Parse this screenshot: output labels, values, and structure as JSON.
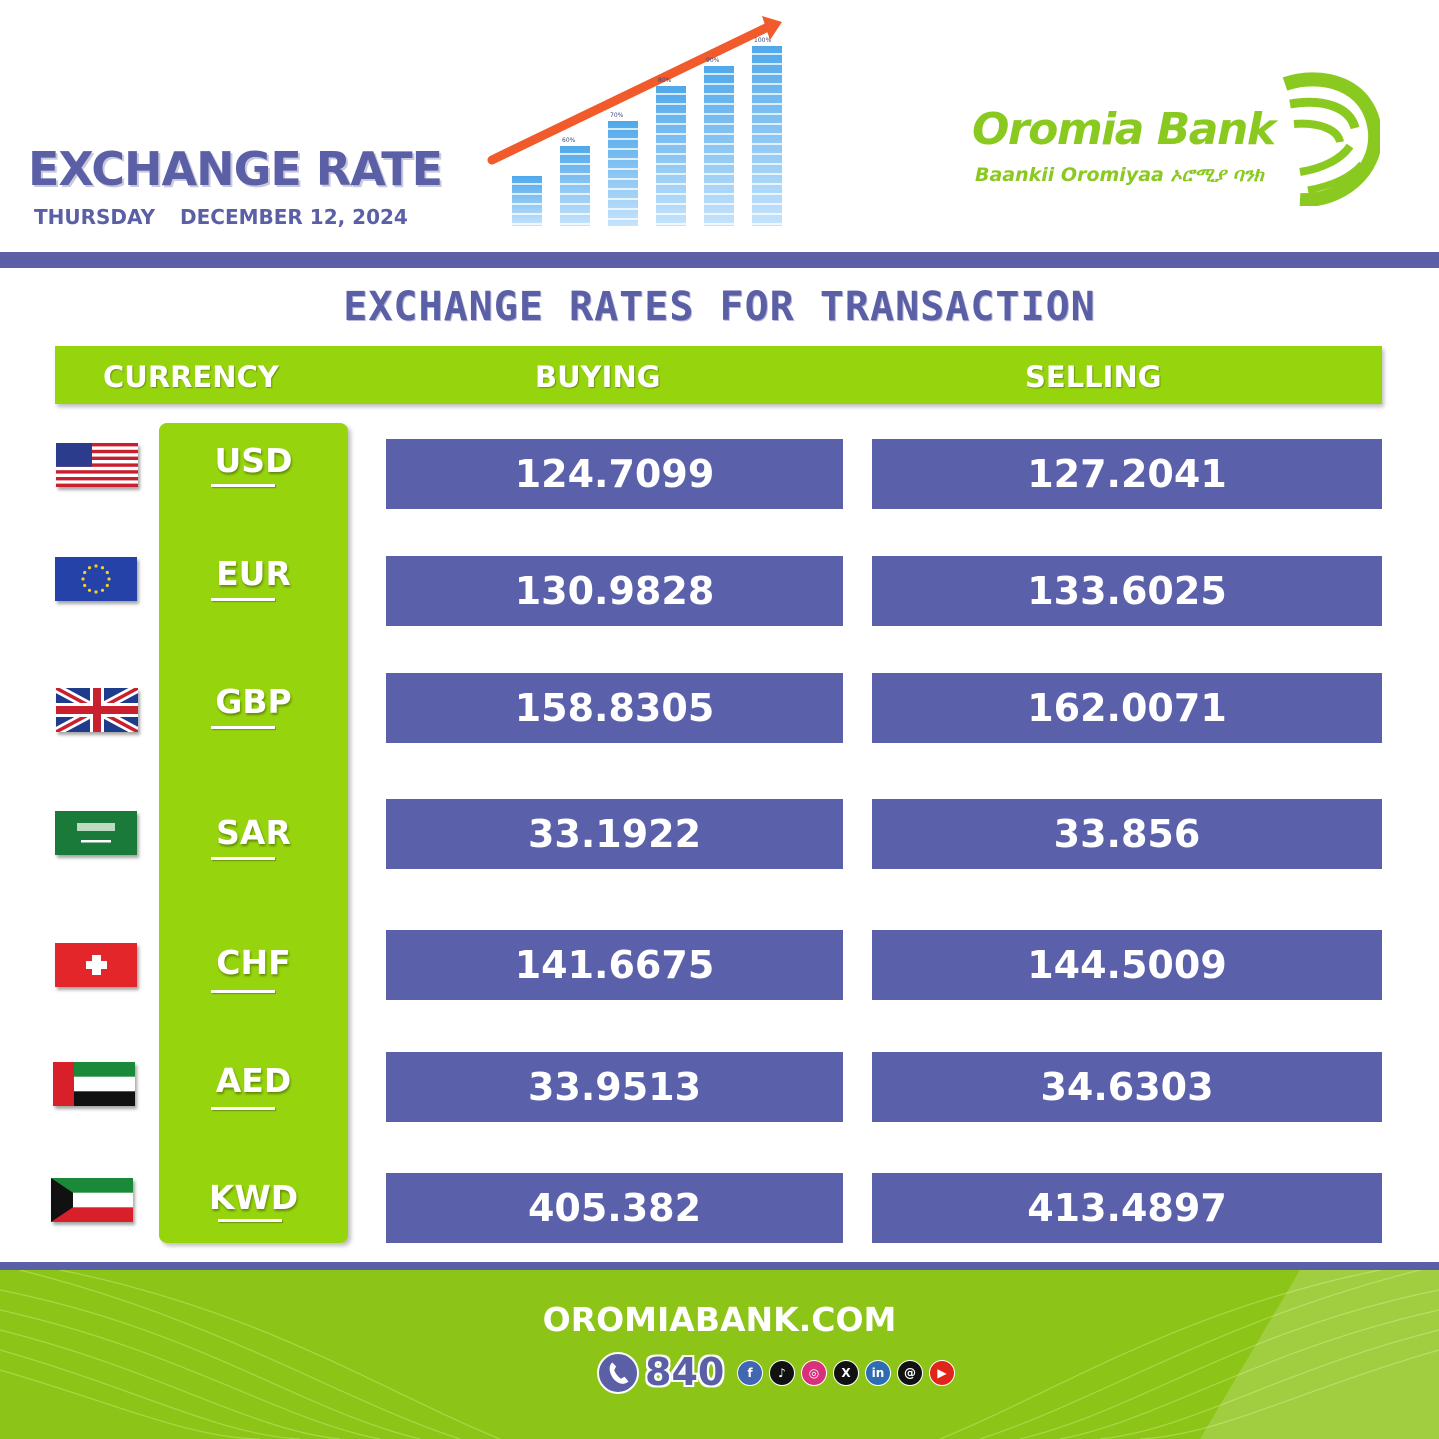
{
  "header": {
    "title": "EXCHANGE RATE",
    "day": "THURSDAY",
    "date": "DECEMBER 12, 2024",
    "chart_labels": [
      "60%",
      "70%",
      "80%",
      "90%",
      "100%"
    ]
  },
  "brand": {
    "name": "Oromia Bank",
    "tagline": "Baankii Oromiyaa ኦሮሚያ ባንክ",
    "colors": {
      "primary": "#5b5fa6",
      "accent": "#96d40d"
    }
  },
  "table": {
    "title": "EXCHANGE RATES FOR TRANSACTION",
    "columns": {
      "currency": "CURRENCY",
      "buying": "BUYING",
      "selling": "SELLING"
    },
    "rows": [
      {
        "code": "USD",
        "flag": "us-flag-icon",
        "buying": "124.7099",
        "selling": "127.2041"
      },
      {
        "code": "EUR",
        "flag": "eu-flag-icon",
        "buying": "130.9828",
        "selling": "133.6025"
      },
      {
        "code": "GBP",
        "flag": "uk-flag-icon",
        "buying": "158.8305",
        "selling": "162.0071"
      },
      {
        "code": "SAR",
        "flag": "saudi-flag-icon",
        "buying": "33.1922",
        "selling": "33.856"
      },
      {
        "code": "CHF",
        "flag": "swiss-flag-icon",
        "buying": "141.6675",
        "selling": "144.5009"
      },
      {
        "code": "AED",
        "flag": "uae-flag-icon",
        "buying": "33.9513",
        "selling": "34.6303"
      },
      {
        "code": "KWD",
        "flag": "kuwait-flag-icon",
        "buying": "405.382",
        "selling": "413.4897"
      }
    ]
  },
  "footer": {
    "website": "OROMIABANK.COM",
    "phone": "840",
    "phone_icon": "phone-icon",
    "social": [
      {
        "icon": "facebook-icon",
        "glyph": "f",
        "color": "#4267b2"
      },
      {
        "icon": "tiktok-icon",
        "glyph": "♪",
        "color": "#111111"
      },
      {
        "icon": "instagram-icon",
        "glyph": "◎",
        "color": "#d8307a"
      },
      {
        "icon": "x-icon",
        "glyph": "X",
        "color": "#111111"
      },
      {
        "icon": "linkedin-icon",
        "glyph": "in",
        "color": "#2f6db3"
      },
      {
        "icon": "threads-icon",
        "glyph": "@",
        "color": "#111111"
      },
      {
        "icon": "youtube-icon",
        "glyph": "▶",
        "color": "#e0251b"
      }
    ]
  }
}
